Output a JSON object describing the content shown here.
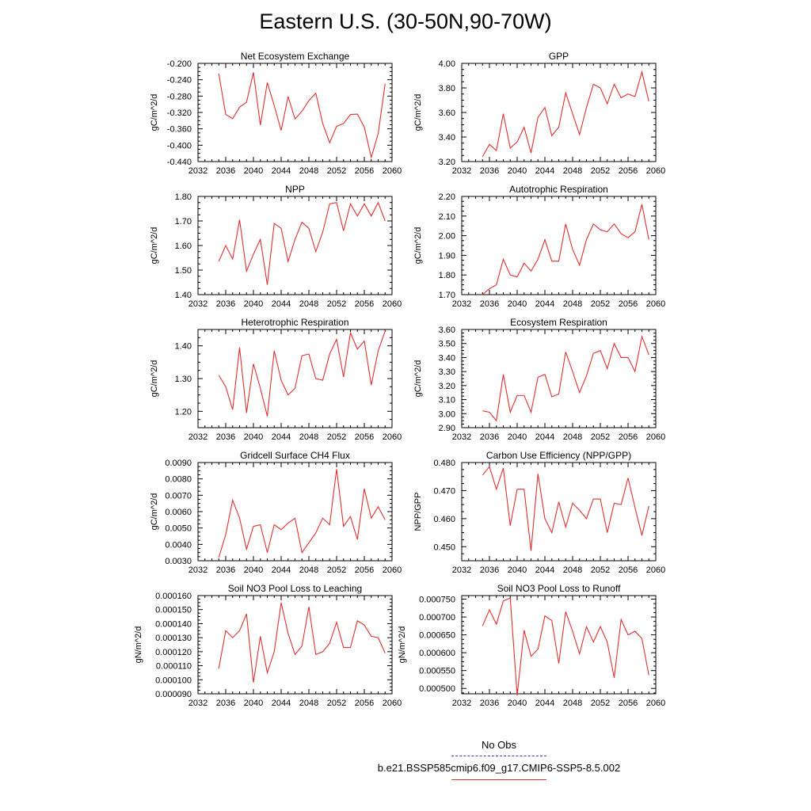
{
  "title": "Eastern U.S. (30-50N,90-70W)",
  "legend": {
    "obs_label": "No Obs",
    "obs_color": "#3a3ad6",
    "run_label": "b.e21.BSSP585cmip6.f09_g17.CMIP6-SSP5-8.5.002",
    "run_color": "#e03030"
  },
  "chart_data": [
    {
      "type": "line",
      "title": "Net Ecosystem Exchange",
      "ylabel": "gC/m^2/d",
      "xlim": [
        2032,
        2060
      ],
      "ylim": [
        -0.44,
        -0.2
      ],
      "xticks": [
        "2032",
        "2036",
        "2040",
        "2044",
        "2048",
        "2052",
        "2056",
        "2060"
      ],
      "yticks": [
        "-0.200",
        "-0.240",
        "-0.280",
        "-0.320",
        "-0.360",
        "-0.400",
        "-0.440"
      ],
      "series": [
        {
          "x": [
            2035,
            2036,
            2037,
            2038,
            2039,
            2040,
            2041,
            2042,
            2043,
            2044,
            2045,
            2046,
            2047,
            2048,
            2049,
            2050,
            2051,
            2052,
            2053,
            2054,
            2055,
            2056,
            2057,
            2058,
            2059
          ],
          "y": [
            -0.225,
            -0.325,
            -0.335,
            -0.307,
            -0.295,
            -0.222,
            -0.351,
            -0.247,
            -0.303,
            -0.364,
            -0.281,
            -0.336,
            -0.317,
            -0.291,
            -0.273,
            -0.347,
            -0.394,
            -0.354,
            -0.347,
            -0.325,
            -0.324,
            -0.356,
            -0.43,
            -0.372,
            -0.25
          ]
        }
      ]
    },
    {
      "type": "line",
      "title": "GPP",
      "ylabel": "gC/m^2/d",
      "xlim": [
        2032,
        2060
      ],
      "ylim": [
        3.2,
        4.0
      ],
      "xticks": [
        "2032",
        "2036",
        "2040",
        "2044",
        "2048",
        "2052",
        "2056",
        "2060"
      ],
      "yticks": [
        "4.00",
        "3.80",
        "3.60",
        "3.40",
        "3.20"
      ],
      "series": [
        {
          "x": [
            2035,
            2036,
            2037,
            2038,
            2039,
            2040,
            2041,
            2042,
            2043,
            2044,
            2045,
            2046,
            2047,
            2048,
            2049,
            2050,
            2051,
            2052,
            2053,
            2054,
            2055,
            2056,
            2057,
            2058,
            2059
          ],
          "y": [
            3.24,
            3.34,
            3.29,
            3.59,
            3.31,
            3.36,
            3.48,
            3.27,
            3.56,
            3.64,
            3.41,
            3.48,
            3.76,
            3.59,
            3.42,
            3.64,
            3.83,
            3.8,
            3.67,
            3.83,
            3.72,
            3.75,
            3.73,
            3.93,
            3.69
          ]
        }
      ]
    },
    {
      "type": "line",
      "title": "NPP",
      "ylabel": "gC/m^2/d",
      "xlim": [
        2032,
        2060
      ],
      "ylim": [
        1.4,
        1.8
      ],
      "xticks": [
        "2032",
        "2036",
        "2040",
        "2044",
        "2048",
        "2052",
        "2056",
        "2060"
      ],
      "yticks": [
        "1.80",
        "1.70",
        "1.60",
        "1.50",
        "1.40"
      ],
      "series": [
        {
          "x": [
            2035,
            2036,
            2037,
            2038,
            2039,
            2040,
            2041,
            2042,
            2043,
            2044,
            2045,
            2046,
            2047,
            2048,
            2049,
            2050,
            2051,
            2052,
            2053,
            2054,
            2055,
            2056,
            2057,
            2058,
            2059
          ],
          "y": [
            1.535,
            1.6,
            1.545,
            1.705,
            1.495,
            1.565,
            1.625,
            1.44,
            1.69,
            1.67,
            1.535,
            1.625,
            1.695,
            1.67,
            1.575,
            1.655,
            1.77,
            1.775,
            1.66,
            1.77,
            1.72,
            1.77,
            1.72,
            1.775,
            1.7
          ]
        }
      ]
    },
    {
      "type": "line",
      "title": "Autotrophic Respiration",
      "ylabel": "gC/m^2/d",
      "xlim": [
        2032,
        2060
      ],
      "ylim": [
        1.7,
        2.2
      ],
      "xticks": [
        "2032",
        "2036",
        "2040",
        "2044",
        "2048",
        "2052",
        "2056",
        "2060"
      ],
      "yticks": [
        "2.20",
        "2.10",
        "2.00",
        "1.90",
        "1.80",
        "1.70"
      ],
      "series": [
        {
          "x": [
            2035,
            2036,
            2037,
            2038,
            2039,
            2040,
            2041,
            2042,
            2043,
            2044,
            2045,
            2046,
            2047,
            2048,
            2049,
            2050,
            2051,
            2052,
            2053,
            2054,
            2055,
            2056,
            2057,
            2058,
            2059
          ],
          "y": [
            1.7,
            1.73,
            1.75,
            1.88,
            1.8,
            1.79,
            1.86,
            1.82,
            1.88,
            1.98,
            1.87,
            1.87,
            2.06,
            1.93,
            1.85,
            1.98,
            2.06,
            2.03,
            2.02,
            2.06,
            2.01,
            1.99,
            2.02,
            2.16,
            1.98
          ]
        }
      ]
    },
    {
      "type": "line",
      "title": "Heterotrophic Respiration",
      "ylabel": "gC/m^2/d",
      "xlim": [
        2032,
        2060
      ],
      "ylim": [
        1.15,
        1.45
      ],
      "xticks": [
        "2032",
        "2036",
        "2040",
        "2044",
        "2048",
        "2052",
        "2056",
        "2060"
      ],
      "yticks": [
        "1.40",
        "1.30",
        "1.20"
      ],
      "series": [
        {
          "x": [
            2035,
            2036,
            2037,
            2038,
            2039,
            2040,
            2041,
            2042,
            2043,
            2044,
            2045,
            2046,
            2047,
            2048,
            2049,
            2050,
            2051,
            2052,
            2053,
            2054,
            2055,
            2056,
            2057,
            2058,
            2059
          ],
          "y": [
            1.31,
            1.275,
            1.205,
            1.395,
            1.195,
            1.345,
            1.27,
            1.185,
            1.385,
            1.295,
            1.25,
            1.27,
            1.37,
            1.375,
            1.3,
            1.295,
            1.375,
            1.42,
            1.305,
            1.44,
            1.39,
            1.415,
            1.28,
            1.385,
            1.445
          ]
        }
      ]
    },
    {
      "type": "line",
      "title": "Ecosystem Respiration",
      "ylabel": "gC/m^2/d",
      "xlim": [
        2032,
        2060
      ],
      "ylim": [
        2.9,
        3.6
      ],
      "xticks": [
        "2032",
        "2036",
        "2040",
        "2044",
        "2048",
        "2052",
        "2056",
        "2060"
      ],
      "yticks": [
        "3.60",
        "3.50",
        "3.40",
        "3.30",
        "3.20",
        "3.10",
        "3.00",
        "2.90"
      ],
      "series": [
        {
          "x": [
            2035,
            2036,
            2037,
            2038,
            2039,
            2040,
            2041,
            2042,
            2043,
            2044,
            2045,
            2046,
            2047,
            2048,
            2049,
            2050,
            2051,
            2052,
            2053,
            2054,
            2055,
            2056,
            2057,
            2058,
            2059
          ],
          "y": [
            3.02,
            3.01,
            2.95,
            3.28,
            3.01,
            3.13,
            3.13,
            3.01,
            3.26,
            3.28,
            3.12,
            3.14,
            3.44,
            3.3,
            3.15,
            3.27,
            3.43,
            3.45,
            3.32,
            3.5,
            3.4,
            3.4,
            3.3,
            3.55,
            3.42
          ]
        }
      ]
    },
    {
      "type": "line",
      "title": "Gridcell Surface CH4 Flux",
      "ylabel": "gC/m^2/d",
      "xlim": [
        2032,
        2060
      ],
      "ylim": [
        0.003,
        0.009
      ],
      "xticks": [
        "2032",
        "2036",
        "2040",
        "2044",
        "2048",
        "2052",
        "2056",
        "2060"
      ],
      "yticks": [
        "0.0090",
        "0.0080",
        "0.0070",
        "0.0060",
        "0.0050",
        "0.0040",
        "0.0030"
      ],
      "series": [
        {
          "x": [
            2035,
            2036,
            2037,
            2038,
            2039,
            2040,
            2041,
            2042,
            2043,
            2044,
            2045,
            2046,
            2047,
            2048,
            2049,
            2050,
            2051,
            2052,
            2053,
            2054,
            2055,
            2056,
            2057,
            2058,
            2059
          ],
          "y": [
            0.0032,
            0.0046,
            0.0067,
            0.0056,
            0.0037,
            0.0051,
            0.0052,
            0.0035,
            0.0052,
            0.0049,
            0.0053,
            0.0056,
            0.0035,
            0.0041,
            0.0047,
            0.0056,
            0.0052,
            0.0086,
            0.0051,
            0.0057,
            0.0043,
            0.0074,
            0.0056,
            0.0063,
            0.0055
          ]
        }
      ]
    },
    {
      "type": "line",
      "title": "Carbon Use Efficiency (NPP/GPP)",
      "ylabel": "NPP/GPP",
      "xlim": [
        2032,
        2060
      ],
      "ylim": [
        0.445,
        0.48
      ],
      "xticks": [
        "2032",
        "2036",
        "2040",
        "2044",
        "2048",
        "2052",
        "2056",
        "2060"
      ],
      "yticks": [
        "0.480",
        "0.470",
        "0.460",
        "0.450"
      ],
      "series": [
        {
          "x": [
            2035,
            2036,
            2037,
            2038,
            2039,
            2040,
            2041,
            2042,
            2043,
            2044,
            2045,
            2046,
            2047,
            2048,
            2049,
            2050,
            2051,
            2052,
            2053,
            2054,
            2055,
            2056,
            2057,
            2058,
            2059
          ],
          "y": [
            0.4755,
            0.4785,
            0.4705,
            0.478,
            0.4575,
            0.4705,
            0.4705,
            0.4485,
            0.476,
            0.46,
            0.455,
            0.466,
            0.457,
            0.4655,
            0.463,
            0.46,
            0.467,
            0.467,
            0.455,
            0.4655,
            0.465,
            0.4745,
            0.464,
            0.454,
            0.4645
          ]
        }
      ]
    },
    {
      "type": "line",
      "title": "Soil NO3 Pool Loss to Leaching",
      "ylabel": "gN/m^2/d",
      "xlim": [
        2032,
        2060
      ],
      "ylim": [
        9e-05,
        0.00016
      ],
      "xticks": [
        "2032",
        "2036",
        "2040",
        "2044",
        "2048",
        "2052",
        "2056",
        "2060"
      ],
      "yticks": [
        "0.000160",
        "0.000150",
        "0.000140",
        "0.000130",
        "0.000120",
        "0.000110",
        "0.000100",
        "0.000090"
      ],
      "series": [
        {
          "x": [
            2035,
            2036,
            2037,
            2038,
            2039,
            2040,
            2041,
            2042,
            2043,
            2044,
            2045,
            2046,
            2047,
            2048,
            2049,
            2050,
            2051,
            2052,
            2053,
            2054,
            2055,
            2056,
            2057,
            2058,
            2059
          ],
          "y": [
            0.000108,
            0.000135,
            0.00013,
            0.000135,
            0.000147,
            9.8e-05,
            0.000131,
            0.000105,
            0.00012,
            0.000155,
            0.000133,
            0.000118,
            0.000124,
            0.000152,
            0.000118,
            0.00012,
            0.000126,
            0.000141,
            0.000123,
            0.000123,
            0.000142,
            0.000139,
            0.000131,
            0.00013,
            0.000119
          ]
        }
      ]
    },
    {
      "type": "line",
      "title": "Soil NO3 Pool Loss to Runoff",
      "ylabel": "gN/m^2/d",
      "xlim": [
        2032,
        2060
      ],
      "ylim": [
        0.000485,
        0.00076
      ],
      "xticks": [
        "2032",
        "2036",
        "2040",
        "2044",
        "2048",
        "2052",
        "2056",
        "2060"
      ],
      "yticks": [
        "0.000750",
        "0.000700",
        "0.000650",
        "0.000600",
        "0.000550",
        "0.000500"
      ],
      "series": [
        {
          "x": [
            2035,
            2036,
            2037,
            2038,
            2039,
            2040,
            2041,
            2042,
            2043,
            2044,
            2045,
            2046,
            2047,
            2048,
            2049,
            2050,
            2051,
            2052,
            2053,
            2054,
            2055,
            2056,
            2057,
            2058,
            2059
          ],
          "y": [
            0.000675,
            0.00072,
            0.00068,
            0.000745,
            0.000753,
            0.00048,
            0.000663,
            0.00059,
            0.00061,
            0.000703,
            0.00069,
            0.00057,
            0.000715,
            0.00066,
            0.000597,
            0.000673,
            0.00063,
            0.000673,
            0.00063,
            0.00053,
            0.000693,
            0.00065,
            0.00066,
            0.00064,
            0.000537
          ]
        }
      ]
    }
  ]
}
